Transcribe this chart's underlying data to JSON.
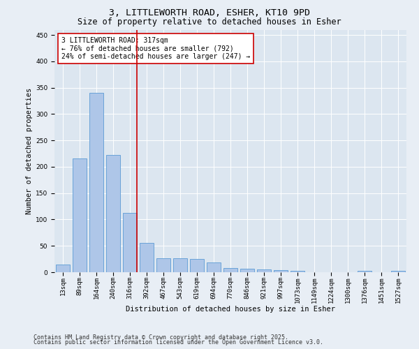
{
  "title_line1": "3, LITTLEWORTH ROAD, ESHER, KT10 9PD",
  "title_line2": "Size of property relative to detached houses in Esher",
  "xlabel": "Distribution of detached houses by size in Esher",
  "ylabel": "Number of detached properties",
  "categories": [
    "13sqm",
    "89sqm",
    "164sqm",
    "240sqm",
    "316sqm",
    "392sqm",
    "467sqm",
    "543sqm",
    "619sqm",
    "694sqm",
    "770sqm",
    "846sqm",
    "921sqm",
    "997sqm",
    "1073sqm",
    "1149sqm",
    "1224sqm",
    "1300sqm",
    "1376sqm",
    "1451sqm",
    "1527sqm"
  ],
  "values": [
    15,
    216,
    340,
    222,
    112,
    55,
    27,
    26,
    25,
    18,
    8,
    7,
    5,
    4,
    2,
    0,
    0,
    0,
    2,
    0,
    2
  ],
  "bar_color": "#aec6e8",
  "bar_edge_color": "#5b9bd5",
  "vline_index": 4,
  "vline_color": "#cc0000",
  "annotation_text": "3 LITTLEWORTH ROAD: 317sqm\n← 76% of detached houses are smaller (792)\n24% of semi-detached houses are larger (247) →",
  "annotation_box_color": "#ffffff",
  "annotation_box_edge": "#cc0000",
  "ylim": [
    0,
    460
  ],
  "yticks": [
    0,
    50,
    100,
    150,
    200,
    250,
    300,
    350,
    400,
    450
  ],
  "background_color": "#e8eef5",
  "plot_bg_color": "#dce6f0",
  "footer_line1": "Contains HM Land Registry data © Crown copyright and database right 2025.",
  "footer_line2": "Contains public sector information licensed under the Open Government Licence v3.0.",
  "title_fontsize": 9.5,
  "subtitle_fontsize": 8.5,
  "axis_label_fontsize": 7.5,
  "tick_fontsize": 6.5,
  "annotation_fontsize": 7,
  "footer_fontsize": 6
}
